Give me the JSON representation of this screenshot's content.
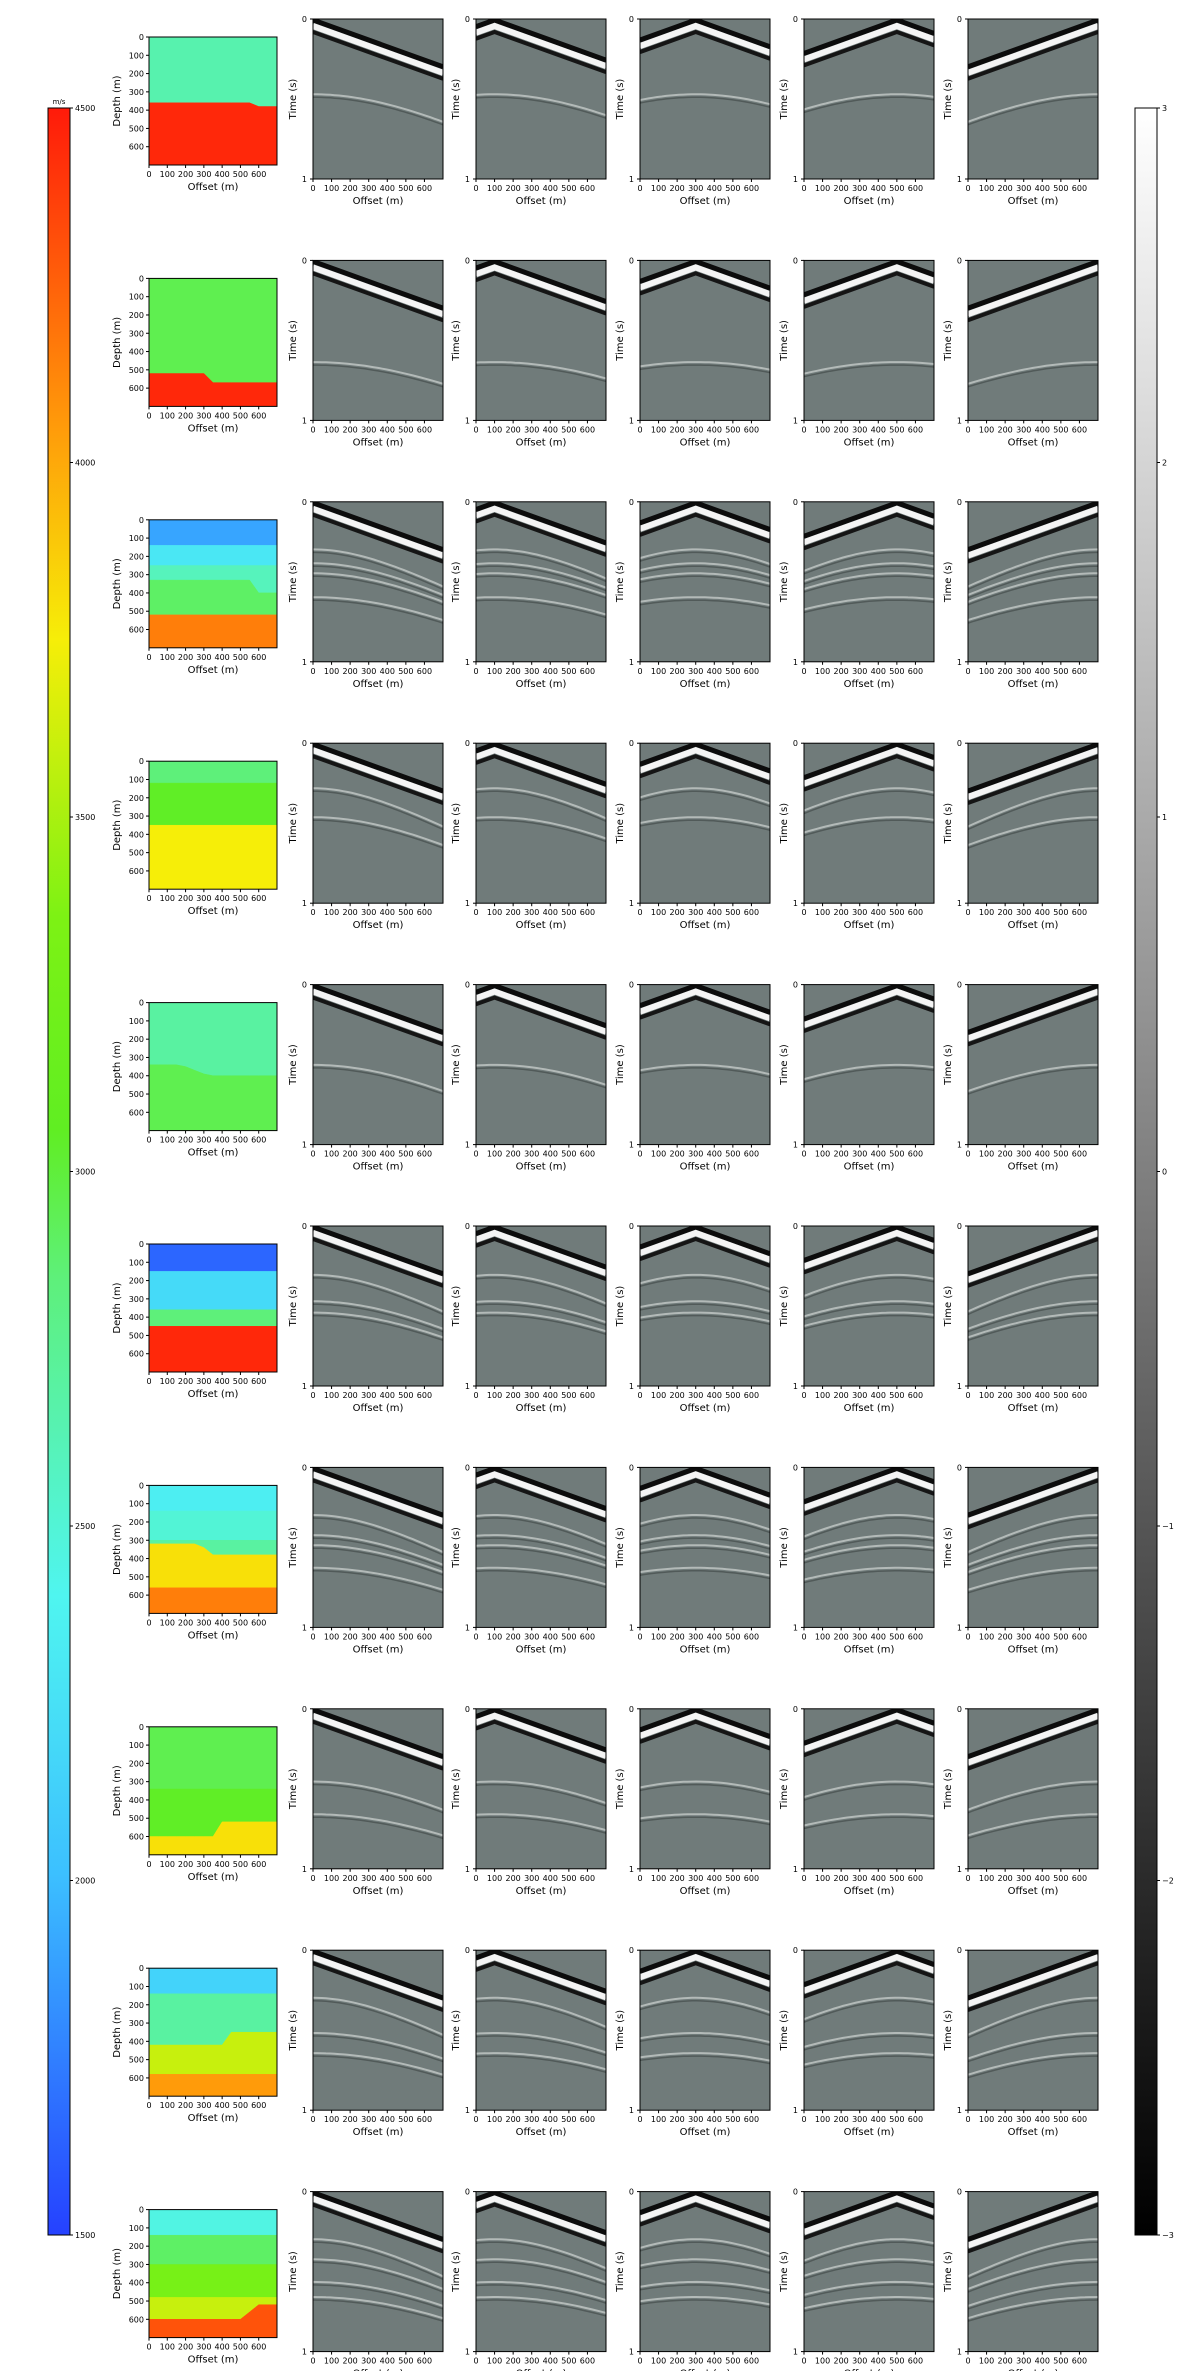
{
  "figure": {
    "rows": 10,
    "cols_per_row": 6,
    "colors": {
      "background": "#ffffff",
      "axis": "#000000"
    }
  },
  "chart_data": [
    {
      "type": "colorbar",
      "unit": "m/s",
      "ticks": [
        1500,
        2000,
        2500,
        3000,
        3500,
        4000,
        4500
      ],
      "range": [
        1500,
        4500
      ],
      "colormap": "jet-like: blue → cyan → green → yellow → orange → red"
    },
    {
      "type": "colorbar",
      "ticks": [
        "−3",
        "−2",
        "−1",
        "0",
        "1",
        "2",
        "3"
      ],
      "range": [
        -3,
        3
      ],
      "colormap": "gray: black → white"
    },
    {
      "type": "heatmap",
      "panel": "velocity_models",
      "xlabel": "Offset (m)",
      "ylabel": "Depth (m)",
      "xticks": [
        "0",
        "100",
        "200",
        "300",
        "400",
        "500",
        "600"
      ],
      "yticks": [
        "0",
        "100",
        "200",
        "300",
        "400",
        "500",
        "600"
      ],
      "xlim": [
        0,
        700
      ],
      "ylim": [
        700,
        0
      ],
      "models": [
        {
          "layers": [
            {
              "v": 2650,
              "base": [
                360,
                360,
                360,
                360,
                360,
                360,
                360,
                360,
                360,
                360,
                360,
                360,
                380,
                380,
                380
              ]
            },
            {
              "v": 4450,
              "base": [
                700,
                700,
                700,
                700,
                700,
                700,
                700,
                700,
                700,
                700,
                700,
                700,
                700,
                700,
                700
              ]
            }
          ]
        },
        {
          "layers": [
            {
              "v": 2950,
              "base": [
                520,
                520,
                520,
                520,
                520,
                520,
                520,
                570,
                570,
                570,
                570,
                570,
                570,
                570,
                570
              ]
            },
            {
              "v": 4450,
              "base": [
                700,
                700,
                700,
                700,
                700,
                700,
                700,
                700,
                700,
                700,
                700,
                700,
                700,
                700,
                700
              ]
            }
          ]
        },
        {
          "layers": [
            {
              "v": 1900,
              "base": [
                140,
                140,
                140,
                140,
                140,
                140,
                140,
                140,
                140,
                140,
                140,
                140,
                140,
                140,
                140
              ]
            },
            {
              "v": 2300,
              "base": [
                250,
                250,
                250,
                250,
                250,
                250,
                250,
                250,
                250,
                250,
                250,
                250,
                250,
                250,
                250
              ]
            },
            {
              "v": 2600,
              "base": [
                330,
                330,
                330,
                330,
                330,
                330,
                330,
                330,
                330,
                330,
                330,
                330,
                400,
                400,
                400
              ]
            },
            {
              "v": 2900,
              "base": [
                520,
                520,
                520,
                520,
                520,
                520,
                520,
                520,
                520,
                520,
                520,
                520,
                520,
                520,
                520
              ]
            },
            {
              "v": 4150,
              "base": [
                700,
                700,
                700,
                700,
                700,
                700,
                700,
                700,
                700,
                700,
                700,
                700,
                700,
                700,
                700
              ]
            }
          ]
        },
        {
          "layers": [
            {
              "v": 2850,
              "base": [
                120,
                120,
                120,
                120,
                120,
                120,
                120,
                120,
                120,
                120,
                120,
                120,
                120,
                120,
                120
              ]
            },
            {
              "v": 3050,
              "base": [
                350,
                350,
                350,
                350,
                350,
                350,
                350,
                350,
                350,
                350,
                350,
                350,
                350,
                350,
                350
              ]
            },
            {
              "v": 3750,
              "base": [
                700,
                700,
                700,
                700,
                700,
                700,
                700,
                700,
                700,
                700,
                700,
                700,
                700,
                700,
                700
              ]
            }
          ]
        },
        {
          "layers": [
            {
              "v": 2700,
              "base": [
                340,
                340,
                340,
                340,
                350,
                370,
                390,
                400,
                400,
                400,
                400,
                400,
                400,
                400,
                400
              ]
            },
            {
              "v": 2950,
              "base": [
                700,
                700,
                700,
                700,
                700,
                700,
                700,
                700,
                700,
                700,
                700,
                700,
                700,
                700,
                700
              ]
            }
          ]
        },
        {
          "layers": [
            {
              "v": 1650,
              "base": [
                150,
                150,
                150,
                150,
                150,
                150,
                150,
                150,
                150,
                150,
                150,
                150,
                150,
                150,
                150
              ]
            },
            {
              "v": 2200,
              "base": [
                360,
                360,
                360,
                360,
                360,
                360,
                360,
                360,
                360,
                360,
                360,
                360,
                360,
                360,
                360
              ]
            },
            {
              "v": 2850,
              "base": [
                450,
                450,
                450,
                450,
                450,
                450,
                450,
                450,
                450,
                450,
                450,
                450,
                450,
                450,
                450
              ]
            },
            {
              "v": 4450,
              "base": [
                700,
                700,
                700,
                700,
                700,
                700,
                700,
                700,
                700,
                700,
                700,
                700,
                700,
                700,
                700
              ]
            }
          ]
        },
        {
          "layers": [
            {
              "v": 2350,
              "base": [
                140,
                140,
                140,
                140,
                140,
                140,
                140,
                140,
                140,
                140,
                140,
                140,
                140,
                140,
                140
              ]
            },
            {
              "v": 2500,
              "base": [
                300,
                300,
                300,
                300,
                300,
                300,
                300,
                300,
                300,
                300,
                300,
                300,
                300,
                300,
                300
              ]
            },
            {
              "v": 2700,
              "base": [
                320,
                320,
                320,
                320,
                320,
                320,
                340,
                380,
                380,
                380,
                380,
                380,
                380,
                380,
                380
              ]
            },
            {
              "v": 3800,
              "base": [
                560,
                560,
                560,
                560,
                560,
                560,
                560,
                560,
                560,
                560,
                560,
                560,
                560,
                560,
                560
              ]
            },
            {
              "v": 4150,
              "base": [
                700,
                700,
                700,
                700,
                700,
                700,
                700,
                700,
                700,
                700,
                700,
                700,
                700,
                700,
                700
              ]
            }
          ]
        },
        {
          "layers": [
            {
              "v": 2950,
              "base": [
                340,
                340,
                340,
                340,
                340,
                340,
                340,
                340,
                340,
                340,
                340,
                340,
                340,
                340,
                340
              ]
            },
            {
              "v": 3050,
              "base": [
                600,
                600,
                600,
                600,
                600,
                600,
                600,
                600,
                520,
                520,
                520,
                520,
                520,
                520,
                520
              ]
            },
            {
              "v": 3800,
              "base": [
                700,
                700,
                700,
                700,
                700,
                700,
                700,
                700,
                700,
                700,
                700,
                700,
                700,
                700,
                700
              ]
            }
          ]
        },
        {
          "layers": [
            {
              "v": 2150,
              "base": [
                140,
                140,
                140,
                140,
                140,
                140,
                140,
                140,
                140,
                140,
                140,
                140,
                140,
                140,
                140
              ]
            },
            {
              "v": 2700,
              "base": [
                420,
                420,
                420,
                420,
                420,
                420,
                420,
                420,
                420,
                350,
                350,
                350,
                350,
                350,
                350
              ]
            },
            {
              "v": 3600,
              "base": [
                580,
                580,
                580,
                580,
                580,
                580,
                580,
                580,
                580,
                580,
                580,
                580,
                580,
                580,
                580
              ]
            },
            {
              "v": 4050,
              "base": [
                700,
                700,
                700,
                700,
                700,
                700,
                700,
                700,
                700,
                700,
                700,
                700,
                700,
                700,
                700
              ]
            }
          ]
        },
        {
          "layers": [
            {
              "v": 2450,
              "base": [
                140,
                140,
                140,
                140,
                140,
                140,
                140,
                140,
                140,
                140,
                140,
                140,
                140,
                140,
                140
              ]
            },
            {
              "v": 2900,
              "base": [
                300,
                300,
                300,
                300,
                300,
                300,
                300,
                300,
                300,
                300,
                300,
                300,
                300,
                300,
                300
              ]
            },
            {
              "v": 3300,
              "base": [
                480,
                480,
                480,
                480,
                480,
                480,
                480,
                480,
                480,
                480,
                480,
                480,
                480,
                480,
                480
              ]
            },
            {
              "v": 3600,
              "base": [
                600,
                600,
                600,
                600,
                600,
                600,
                600,
                600,
                600,
                600,
                600,
                560,
                520,
                520,
                520
              ]
            },
            {
              "v": 4300,
              "base": [
                700,
                700,
                700,
                700,
                700,
                700,
                700,
                700,
                700,
                700,
                700,
                700,
                700,
                700,
                700
              ]
            }
          ]
        }
      ]
    },
    {
      "type": "heatmap",
      "panel": "seismic_shot_gathers",
      "xlabel": "Offset (m)",
      "ylabel": "Time (s)",
      "xticks": [
        "0",
        "100",
        "200",
        "300",
        "400",
        "500",
        "600"
      ],
      "yticks": [
        "0",
        "1"
      ],
      "xlim": [
        0,
        700
      ],
      "ylim": [
        1,
        0
      ],
      "source_offsets": [
        0,
        100,
        300,
        500,
        700
      ],
      "gathers_per_row": 5
    }
  ]
}
